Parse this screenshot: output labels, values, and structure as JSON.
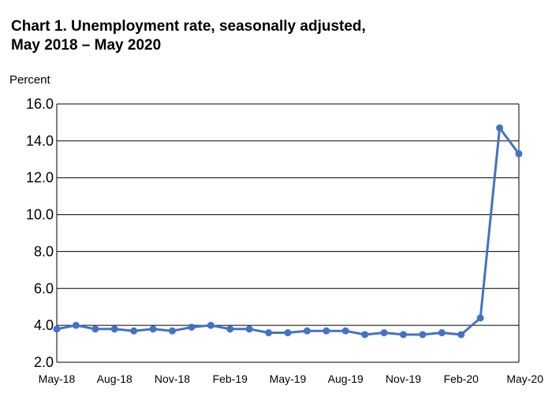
{
  "title_line1": "Chart 1. Unemployment rate, seasonally adjusted,",
  "title_line2": "May 2018 – May 2020",
  "chart_data": {
    "type": "line",
    "title": "Chart 1. Unemployment rate, seasonally adjusted, May 2018 – May 2020",
    "xlabel": "",
    "ylabel": "Percent",
    "ylim": [
      2.0,
      16.0
    ],
    "y_ticks": [
      "2.0",
      "4.0",
      "6.0",
      "8.0",
      "10.0",
      "12.0",
      "14.0",
      "16.0"
    ],
    "x_tick_labels": [
      "May-18",
      "Aug-18",
      "Nov-18",
      "Feb-19",
      "May-19",
      "Aug-19",
      "Nov-19",
      "Feb-20",
      "May-20"
    ],
    "grid": true,
    "x": [
      "May-18",
      "Jun-18",
      "Jul-18",
      "Aug-18",
      "Sep-18",
      "Oct-18",
      "Nov-18",
      "Dec-18",
      "Jan-19",
      "Feb-19",
      "Mar-19",
      "Apr-19",
      "May-19",
      "Jun-19",
      "Jul-19",
      "Aug-19",
      "Sep-19",
      "Oct-19",
      "Nov-19",
      "Dec-19",
      "Jan-20",
      "Feb-20",
      "Mar-20",
      "Apr-20",
      "May-20"
    ],
    "series": [
      {
        "values": [
          3.8,
          4.0,
          3.8,
          3.8,
          3.7,
          3.8,
          3.7,
          3.9,
          4.0,
          3.8,
          3.8,
          3.6,
          3.6,
          3.7,
          3.7,
          3.7,
          3.5,
          3.6,
          3.5,
          3.5,
          3.6,
          3.5,
          4.4,
          14.7,
          13.3
        ]
      }
    ],
    "line_color": "#4472C4"
  }
}
